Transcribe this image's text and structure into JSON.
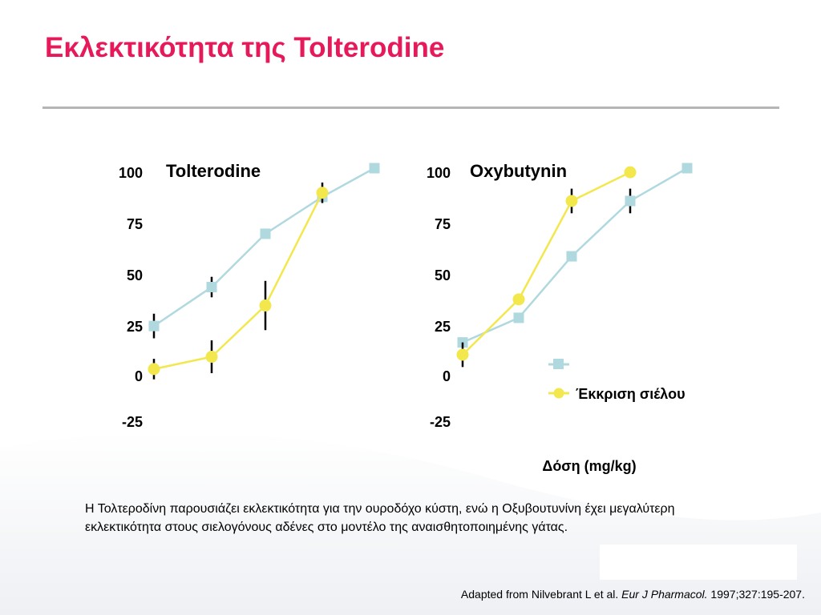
{
  "slide": {
    "title": "Εκλεκτικότητα της Tolterodine",
    "caption": "Η Τολτεροδίνη παρουσιάζει εκλεκτικότητα για την ουροδόχο κύστη, ενώ η Οξυβουτυνίνη έχει μεγαλύτερη εκλεκτικότητα στους σιελογόνους αδένες στο μοντέλο της αναισθητοποιημένης γάτας.",
    "citation": {
      "prefix": "Adapted from Nilvebrant L et al. ",
      "journal": "Eur J Pharmacol.",
      "suffix": " 1997;327:195-207."
    }
  },
  "colors": {
    "title": "#e6195a",
    "series_square": "#b0d9df",
    "series_circle": "#f2e84e",
    "error_bar": "#000000"
  },
  "chart_data": [
    {
      "type": "line",
      "title": "Tolterodine",
      "xlabel": "",
      "ylabel": "",
      "ylim": [
        -25,
        100
      ],
      "yticks": [
        "100",
        "75",
        "50",
        "25",
        "0",
        "-25"
      ],
      "x": [
        1,
        2,
        3,
        4,
        5
      ],
      "series": [
        {
          "marker": "square",
          "values": [
            23,
            42,
            68,
            86,
            100
          ],
          "error": [
            6,
            5,
            0,
            0,
            0
          ]
        },
        {
          "marker": "circle",
          "values": [
            2,
            8,
            33,
            88,
            null
          ],
          "error": [
            5,
            8,
            12,
            5,
            0
          ]
        }
      ]
    },
    {
      "type": "line",
      "title": "Oxybutynin",
      "xlabel": "Δόση (mg/kg)",
      "ylabel": "",
      "ylim": [
        -25,
        100
      ],
      "yticks": [
        "100",
        "75",
        "50",
        "25",
        "0",
        "-25"
      ],
      "x": [
        1,
        2,
        3,
        4,
        5
      ],
      "series": [
        {
          "marker": "square",
          "values": [
            15,
            27,
            57,
            84,
            100
          ],
          "error": [
            0,
            0,
            0,
            6,
            0
          ]
        },
        {
          "marker": "circle",
          "values": [
            9,
            36,
            84,
            98,
            null
          ],
          "error": [
            6,
            0,
            6,
            0,
            0
          ]
        }
      ],
      "legend": [
        {
          "marker": "square",
          "label": ""
        },
        {
          "marker": "circle",
          "label": "Έκκριση σιέλου"
        }
      ]
    }
  ]
}
